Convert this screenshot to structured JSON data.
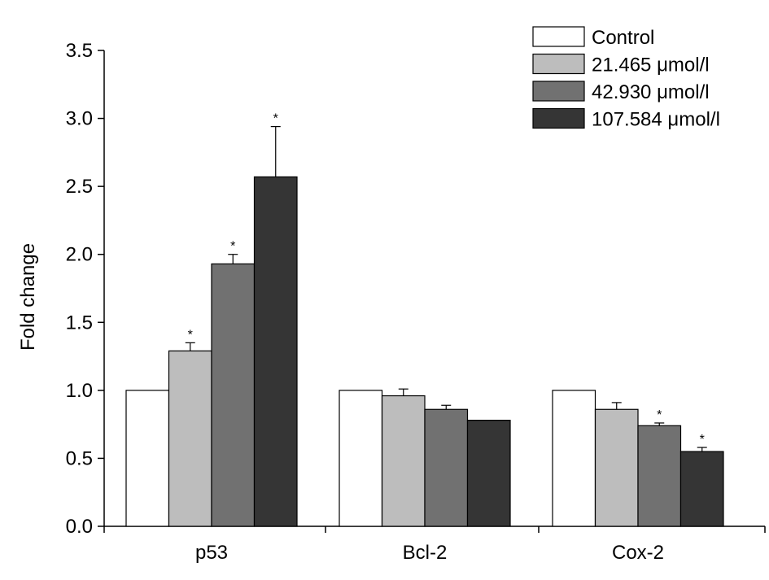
{
  "chart_data": {
    "type": "bar",
    "title": "",
    "xlabel": "",
    "ylabel": "Fold change",
    "ylim": [
      0,
      3.5
    ],
    "yticks": [
      "0.0",
      "0.5",
      "1.0",
      "1.5",
      "2.0",
      "2.5",
      "3.0",
      "3.5"
    ],
    "categories": [
      "p53",
      "Bcl-2",
      "Cox-2"
    ],
    "legend_position": "top-right",
    "series": [
      {
        "name": "Control",
        "color": "#ffffff",
        "values": [
          1.0,
          1.0,
          1.0
        ],
        "errors": [
          0,
          0,
          0
        ],
        "significant": [
          false,
          false,
          false
        ]
      },
      {
        "name": "21.465 μmol/l",
        "color": "#bdbdbd",
        "values": [
          1.29,
          0.96,
          0.86
        ],
        "errors": [
          0.06,
          0.05,
          0.05
        ],
        "significant": [
          true,
          false,
          false
        ]
      },
      {
        "name": "42.930 μmol/l",
        "color": "#717171",
        "values": [
          1.93,
          0.86,
          0.74
        ],
        "errors": [
          0.07,
          0.03,
          0.02
        ],
        "significant": [
          true,
          false,
          true
        ]
      },
      {
        "name": "107.584 μmol/l",
        "color": "#353535",
        "values": [
          2.57,
          0.78,
          0.55
        ],
        "errors": [
          0.37,
          0,
          0.03
        ],
        "significant": [
          true,
          false,
          true
        ]
      }
    ],
    "significance_marker": "*"
  }
}
